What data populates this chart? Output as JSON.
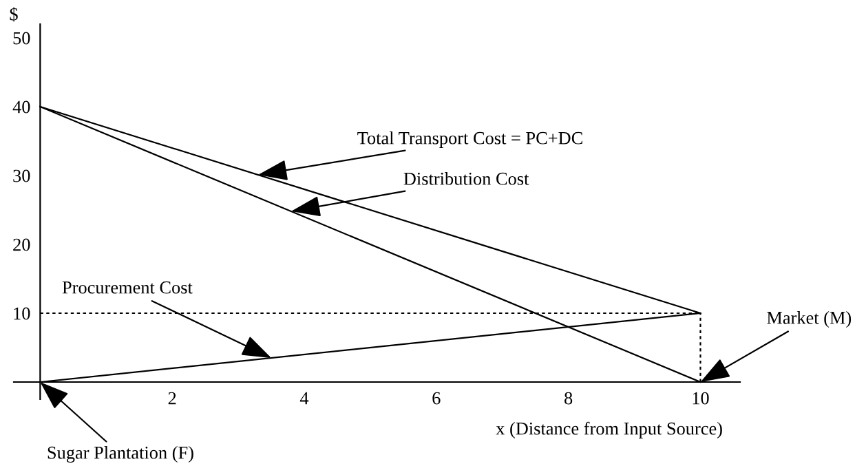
{
  "chart_data": {
    "type": "line",
    "ylabel": "$",
    "xlabel": "x (Distance from Input Source)",
    "xlim": [
      -0.4,
      10.6
    ],
    "ylim": [
      -2.5,
      52
    ],
    "xticks": [
      2,
      4,
      6,
      8,
      10
    ],
    "yticks": [
      10,
      20,
      30,
      40,
      50
    ],
    "x": [
      0,
      10
    ],
    "marker": "none",
    "series": [
      {
        "color": "#000000",
        "values": [
          40,
          10
        ],
        "line_style": "solid"
      },
      {
        "color": "#000000",
        "values": [
          40,
          0
        ],
        "line_style": "solid"
      },
      {
        "color": "#000000",
        "values": [
          0,
          10
        ],
        "line_style": "solid"
      },
      {
        "color": "#000000",
        "values": [
          10,
          10
        ],
        "line_style": "dotted"
      },
      {
        "color": "#000000",
        "x": [
          10,
          10
        ],
        "values": [
          0,
          10
        ],
        "line_style": "dotted"
      }
    ],
    "annotations": [
      {
        "text": "Total Transport Cost = PC+DC",
        "x": 3.3,
        "y": 30.1
      },
      {
        "text": "Distribution Cost",
        "x": 3.8,
        "y": 24.8
      },
      {
        "text": "Procurement Cost",
        "x": 3.5,
        "y": 3.5
      },
      {
        "text": "Market (M)",
        "x": 10,
        "y": 0
      },
      {
        "text": "Sugar Plantation (F)",
        "x": 0,
        "y": 0
      }
    ]
  }
}
